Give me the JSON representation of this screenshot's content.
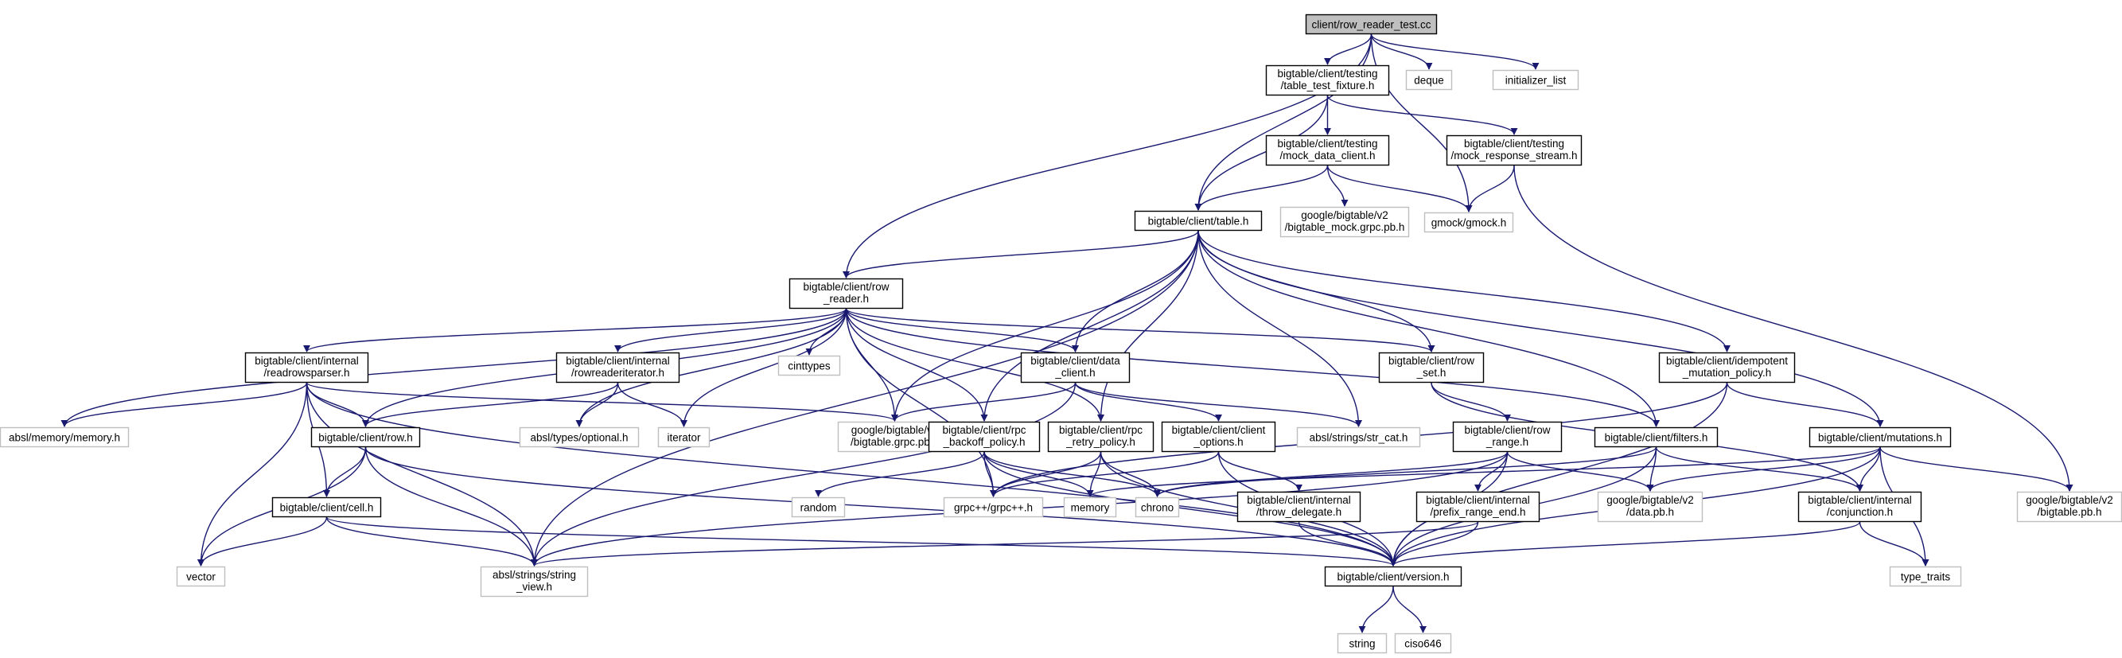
{
  "colors": {
    "edge": "#191970",
    "root_fill": "#bfbfbf",
    "node_border": "#000000",
    "external_border": "#bfbfbf",
    "background": "#ffffff"
  },
  "nodes": [
    {
      "id": "root",
      "lines": [
        "client/row_reader_test.cc"
      ],
      "kind": "root"
    },
    {
      "id": "table_test_fixture",
      "lines": [
        "bigtable/client/testing",
        "/table_test_fixture.h"
      ],
      "kind": "internal"
    },
    {
      "id": "deque",
      "lines": [
        "deque"
      ],
      "kind": "external"
    },
    {
      "id": "initializer_list",
      "lines": [
        "initializer_list"
      ],
      "kind": "external"
    },
    {
      "id": "mock_data_client",
      "lines": [
        "bigtable/client/testing",
        "/mock_data_client.h"
      ],
      "kind": "internal"
    },
    {
      "id": "mock_response_stream",
      "lines": [
        "bigtable/client/testing",
        "/mock_response_stream.h"
      ],
      "kind": "internal"
    },
    {
      "id": "bigtable_mock_grpc",
      "lines": [
        "google/bigtable/v2",
        "/bigtable_mock.grpc.pb.h"
      ],
      "kind": "external"
    },
    {
      "id": "gmock",
      "lines": [
        "gmock/gmock.h"
      ],
      "kind": "external"
    },
    {
      "id": "table",
      "lines": [
        "bigtable/client/table.h"
      ],
      "kind": "internal"
    },
    {
      "id": "row_reader",
      "lines": [
        "bigtable/client/row",
        "_reader.h"
      ],
      "kind": "internal"
    },
    {
      "id": "readrowsparser",
      "lines": [
        "bigtable/client/internal",
        "/readrowsparser.h"
      ],
      "kind": "internal"
    },
    {
      "id": "rowreaderiterator",
      "lines": [
        "bigtable/client/internal",
        "/rowreaderiterator.h"
      ],
      "kind": "internal"
    },
    {
      "id": "cinttypes",
      "lines": [
        "cinttypes"
      ],
      "kind": "external"
    },
    {
      "id": "data_client",
      "lines": [
        "bigtable/client/data",
        "_client.h"
      ],
      "kind": "internal"
    },
    {
      "id": "row_set",
      "lines": [
        "bigtable/client/row",
        "_set.h"
      ],
      "kind": "internal"
    },
    {
      "id": "idempotent",
      "lines": [
        "bigtable/client/idempotent",
        "_mutation_policy.h"
      ],
      "kind": "internal"
    },
    {
      "id": "absl_memory",
      "lines": [
        "absl/memory/memory.h"
      ],
      "kind": "external"
    },
    {
      "id": "row",
      "lines": [
        "bigtable/client/row.h"
      ],
      "kind": "internal"
    },
    {
      "id": "absl_optional",
      "lines": [
        "absl/types/optional.h"
      ],
      "kind": "external"
    },
    {
      "id": "iterator",
      "lines": [
        "iterator"
      ],
      "kind": "external"
    },
    {
      "id": "bigtable_grpc",
      "lines": [
        "google/bigtable/v2",
        "/bigtable.grpc.pb.h"
      ],
      "kind": "external"
    },
    {
      "id": "rpc_backoff",
      "lines": [
        "bigtable/client/rpc",
        "_backoff_policy.h"
      ],
      "kind": "internal"
    },
    {
      "id": "rpc_retry",
      "lines": [
        "bigtable/client/rpc",
        "_retry_policy.h"
      ],
      "kind": "internal"
    },
    {
      "id": "client_options",
      "lines": [
        "bigtable/client/client",
        "_options.h"
      ],
      "kind": "internal"
    },
    {
      "id": "str_cat",
      "lines": [
        "absl/strings/str_cat.h"
      ],
      "kind": "external"
    },
    {
      "id": "row_range",
      "lines": [
        "bigtable/client/row",
        "_range.h"
      ],
      "kind": "internal"
    },
    {
      "id": "filters",
      "lines": [
        "bigtable/client/filters.h"
      ],
      "kind": "internal"
    },
    {
      "id": "mutations",
      "lines": [
        "bigtable/client/mutations.h"
      ],
      "kind": "internal"
    },
    {
      "id": "cell",
      "lines": [
        "bigtable/client/cell.h"
      ],
      "kind": "internal"
    },
    {
      "id": "random",
      "lines": [
        "random"
      ],
      "kind": "external"
    },
    {
      "id": "grpcpp",
      "lines": [
        "grpc++/grpc++.h"
      ],
      "kind": "external"
    },
    {
      "id": "memory",
      "lines": [
        "memory"
      ],
      "kind": "external"
    },
    {
      "id": "chrono",
      "lines": [
        "chrono"
      ],
      "kind": "external"
    },
    {
      "id": "throw_delegate",
      "lines": [
        "bigtable/client/internal",
        "/throw_delegate.h"
      ],
      "kind": "internal"
    },
    {
      "id": "prefix_range_end",
      "lines": [
        "bigtable/client/internal",
        "/prefix_range_end.h"
      ],
      "kind": "internal"
    },
    {
      "id": "data_pb",
      "lines": [
        "google/bigtable/v2",
        "/data.pb.h"
      ],
      "kind": "external"
    },
    {
      "id": "conjunction",
      "lines": [
        "bigtable/client/internal",
        "/conjunction.h"
      ],
      "kind": "internal"
    },
    {
      "id": "bigtable_pb",
      "lines": [
        "google/bigtable/v2",
        "/bigtable.pb.h"
      ],
      "kind": "external"
    },
    {
      "id": "vector",
      "lines": [
        "vector"
      ],
      "kind": "external"
    },
    {
      "id": "string_view",
      "lines": [
        "absl/strings/string",
        "_view.h"
      ],
      "kind": "external"
    },
    {
      "id": "version",
      "lines": [
        "bigtable/client/version.h"
      ],
      "kind": "internal"
    },
    {
      "id": "type_traits",
      "lines": [
        "type_traits"
      ],
      "kind": "external"
    },
    {
      "id": "string",
      "lines": [
        "string"
      ],
      "kind": "external"
    },
    {
      "id": "ciso646",
      "lines": [
        "ciso646"
      ],
      "kind": "external"
    }
  ],
  "edges": [
    [
      "root",
      "table_test_fixture"
    ],
    [
      "root",
      "deque"
    ],
    [
      "root",
      "initializer_list"
    ],
    [
      "root",
      "gmock"
    ],
    [
      "root",
      "table"
    ],
    [
      "root",
      "row_reader"
    ],
    [
      "table_test_fixture",
      "mock_data_client"
    ],
    [
      "table_test_fixture",
      "mock_response_stream"
    ],
    [
      "table_test_fixture",
      "table"
    ],
    [
      "mock_data_client",
      "bigtable_mock_grpc"
    ],
    [
      "mock_data_client",
      "gmock"
    ],
    [
      "mock_data_client",
      "table"
    ],
    [
      "mock_response_stream",
      "gmock"
    ],
    [
      "mock_response_stream",
      "bigtable_pb"
    ],
    [
      "table",
      "row_reader"
    ],
    [
      "table",
      "data_client"
    ],
    [
      "table",
      "row_set"
    ],
    [
      "table",
      "idempotent"
    ],
    [
      "table",
      "mutations"
    ],
    [
      "table",
      "filters"
    ],
    [
      "table",
      "str_cat"
    ],
    [
      "table",
      "rpc_backoff"
    ],
    [
      "table",
      "rpc_retry"
    ],
    [
      "table",
      "bigtable_grpc"
    ],
    [
      "table",
      "string_view"
    ],
    [
      "row_reader",
      "readrowsparser"
    ],
    [
      "row_reader",
      "rowreaderiterator"
    ],
    [
      "row_reader",
      "cinttypes"
    ],
    [
      "row_reader",
      "data_client"
    ],
    [
      "row_reader",
      "row_set"
    ],
    [
      "row_reader",
      "filters"
    ],
    [
      "row_reader",
      "absl_memory"
    ],
    [
      "row_reader",
      "row"
    ],
    [
      "row_reader",
      "absl_optional"
    ],
    [
      "row_reader",
      "iterator"
    ],
    [
      "row_reader",
      "bigtable_grpc"
    ],
    [
      "row_reader",
      "rpc_backoff"
    ],
    [
      "row_reader",
      "rpc_retry"
    ],
    [
      "row_reader",
      "grpcpp"
    ],
    [
      "readrowsparser",
      "absl_memory"
    ],
    [
      "readrowsparser",
      "row"
    ],
    [
      "readrowsparser",
      "bigtable_grpc"
    ],
    [
      "readrowsparser",
      "cell"
    ],
    [
      "readrowsparser",
      "vector"
    ],
    [
      "readrowsparser",
      "string_view"
    ],
    [
      "readrowsparser",
      "version"
    ],
    [
      "rowreaderiterator",
      "row"
    ],
    [
      "rowreaderiterator",
      "absl_optional"
    ],
    [
      "rowreaderiterator",
      "iterator"
    ],
    [
      "data_client",
      "client_options"
    ],
    [
      "data_client",
      "bigtable_grpc"
    ],
    [
      "data_client",
      "str_cat"
    ],
    [
      "data_client",
      "string_view"
    ],
    [
      "row_set",
      "row_range"
    ],
    [
      "row_set",
      "conjunction"
    ],
    [
      "idempotent",
      "mutations"
    ],
    [
      "idempotent",
      "version"
    ],
    [
      "idempotent",
      "grpcpp"
    ],
    [
      "row",
      "cell"
    ],
    [
      "row",
      "vector"
    ],
    [
      "row",
      "string_view"
    ],
    [
      "row",
      "version"
    ],
    [
      "cell",
      "vector"
    ],
    [
      "cell",
      "string_view"
    ],
    [
      "cell",
      "version"
    ],
    [
      "rpc_backoff",
      "random"
    ],
    [
      "rpc_backoff",
      "grpcpp"
    ],
    [
      "rpc_backoff",
      "memory"
    ],
    [
      "rpc_backoff",
      "chrono"
    ],
    [
      "rpc_backoff",
      "version"
    ],
    [
      "rpc_retry",
      "grpcpp"
    ],
    [
      "rpc_retry",
      "memory"
    ],
    [
      "rpc_retry",
      "chrono"
    ],
    [
      "rpc_retry",
      "version"
    ],
    [
      "client_options",
      "grpcpp"
    ],
    [
      "client_options",
      "throw_delegate"
    ],
    [
      "client_options",
      "version"
    ],
    [
      "row_range",
      "chrono"
    ],
    [
      "row_range",
      "prefix_range_end"
    ],
    [
      "row_range",
      "data_pb"
    ],
    [
      "row_range",
      "version"
    ],
    [
      "row_range",
      "string_view"
    ],
    [
      "filters",
      "chrono"
    ],
    [
      "filters",
      "data_pb"
    ],
    [
      "filters",
      "conjunction"
    ],
    [
      "filters",
      "version"
    ],
    [
      "mutations",
      "memory"
    ],
    [
      "mutations",
      "data_pb"
    ],
    [
      "mutations",
      "conjunction"
    ],
    [
      "mutations",
      "bigtable_pb"
    ],
    [
      "mutations",
      "type_traits"
    ],
    [
      "mutations",
      "version"
    ],
    [
      "throw_delegate",
      "version"
    ],
    [
      "prefix_range_end",
      "version"
    ],
    [
      "prefix_range_end",
      "string_view"
    ],
    [
      "conjunction",
      "type_traits"
    ],
    [
      "conjunction",
      "version"
    ],
    [
      "version",
      "string"
    ],
    [
      "version",
      "ciso646"
    ]
  ]
}
